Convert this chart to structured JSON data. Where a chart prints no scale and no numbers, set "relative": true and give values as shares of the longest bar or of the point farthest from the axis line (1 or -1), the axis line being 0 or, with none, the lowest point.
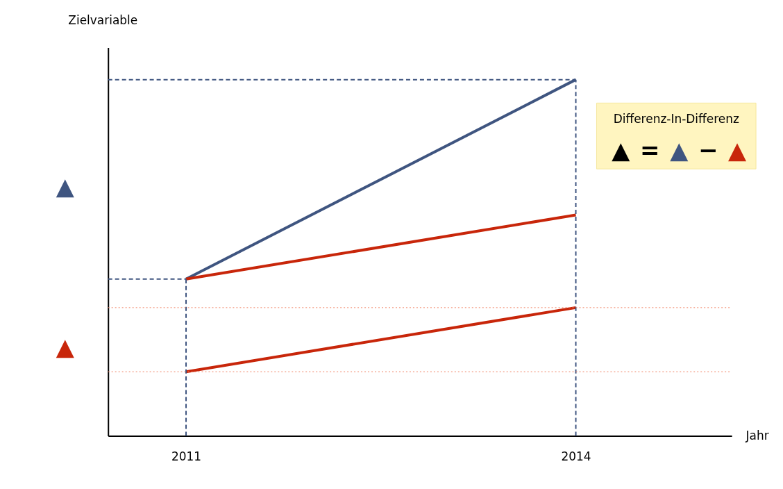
{
  "chart_data": {
    "type": "line",
    "relative": true,
    "xlabel": "Jahr",
    "ylabel": "Zielvariable",
    "x": [
      2011,
      2014
    ],
    "xlim": [
      2010.4,
      2015.2
    ],
    "xticks": [
      2011,
      2014
    ],
    "series": [
      {
        "color": "#3f5580",
        "values": [
          0.44,
          1
        ]
      },
      {
        "color": "#c8260a",
        "values": [
          0.44,
          0.62
        ]
      },
      {
        "color": "#c8260a",
        "values": [
          0.18,
          0.36
        ]
      }
    ],
    "ref_lines": [
      {
        "axis": "x",
        "value": 2011,
        "color": "#3f5580",
        "line_style": "dashed"
      },
      {
        "axis": "x",
        "value": 2014,
        "color": "#3f5580",
        "line_style": "dashed"
      },
      {
        "axis": "y",
        "value": 1,
        "color": "#3f5580",
        "line_style": "dashed"
      },
      {
        "axis": "y",
        "value": 0.44,
        "color": "#3f5580",
        "line_style": "dashed"
      },
      {
        "axis": "y",
        "value": 0.36,
        "color": "#f08060",
        "line_style": "dotted"
      },
      {
        "axis": "y",
        "value": 0.18,
        "color": "#f08060",
        "line_style": "dotted"
      }
    ],
    "annotations": [
      "Differenz-In-Differenz",
      "▲ = ▲ − ▲",
      "▲",
      "▲"
    ],
    "legend": false,
    "grid": false,
    "line_style": "solid",
    "marker": "none"
  }
}
